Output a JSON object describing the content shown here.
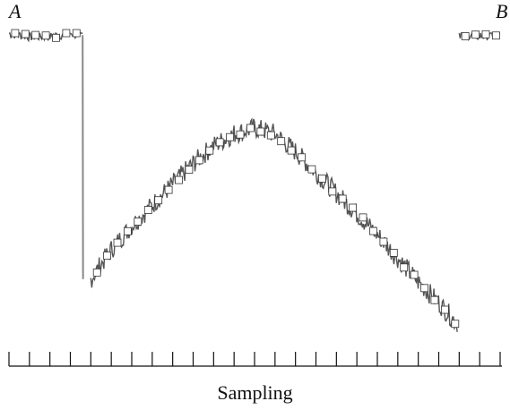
{
  "chart_data": {
    "type": "line",
    "title": "",
    "xlabel": "Sampling",
    "ylabel": "",
    "endpoint_labels": {
      "left": "A",
      "right": "B"
    },
    "x_ticks_shown": 25,
    "ylim": [
      0,
      1
    ],
    "grid": false,
    "legend": "none",
    "series": [
      {
        "values_description_free": true,
        "x": [
          0,
          1,
          2,
          3,
          3.9,
          4,
          5,
          6,
          7,
          8,
          9,
          10,
          11,
          12,
          13,
          14,
          15,
          16,
          17,
          18,
          19,
          20,
          21,
          21.9,
          22,
          23,
          24
        ],
        "y": [
          1.0,
          0.99,
          0.99,
          1.0,
          0.99,
          0.17,
          0.27,
          0.35,
          0.42,
          0.49,
          0.56,
          0.62,
          0.66,
          0.68,
          0.66,
          0.6,
          0.53,
          0.46,
          0.39,
          0.32,
          0.24,
          0.16,
          0.09,
          0.02,
          1.0,
          0.99,
          1.0
        ]
      }
    ],
    "marker_x": [
      1,
      2,
      3,
      4.5,
      5.5,
      6.5,
      7.5,
      8.5,
      9.5,
      10.5,
      11.5,
      12.5,
      13.5,
      14.5,
      15.5,
      16.5,
      17.5,
      18.5,
      19.5,
      20.5,
      21.5,
      22.5,
      23.5
    ],
    "colors": {
      "line": "#555555",
      "marker_fill": "#ffffff",
      "marker_stroke": "#333333",
      "axis": "#111111"
    }
  }
}
